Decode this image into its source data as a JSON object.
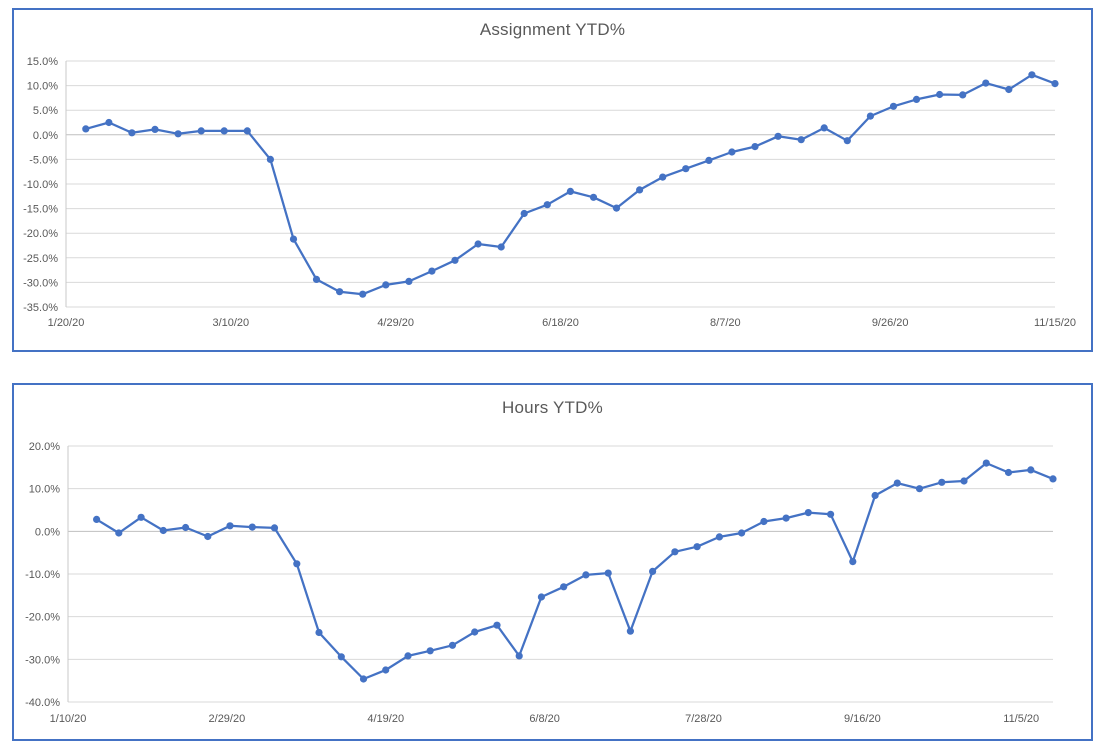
{
  "colors": {
    "line": "#4472C4",
    "marker": "#4472C4",
    "gridline": "#D9D9D9",
    "zero_line": "#BFBFBF",
    "axis_line": "#C9C9C9",
    "axis_text": "#595959",
    "title_text": "#595959",
    "chart_border": "#4472C4",
    "background": "#FFFFFF"
  },
  "chart_data": [
    {
      "type": "line",
      "title": "Assignment YTD%",
      "grid": true,
      "legend": "none",
      "marker": "circle",
      "x_axis": {
        "min": "1/20/20",
        "max": "11/15/20",
        "ticks": [
          "1/20/20",
          "3/10/20",
          "4/29/20",
          "6/18/20",
          "8/7/20",
          "9/26/20",
          "11/15/20"
        ]
      },
      "y_axis": {
        "min": -35,
        "max": 15,
        "tick_values": [
          15,
          10,
          5,
          0,
          -5,
          -10,
          -15,
          -20,
          -25,
          -30,
          -35
        ],
        "tick_labels": [
          "15.0%",
          "10.0%",
          "5.0%",
          "0.0%",
          "-5.0%",
          "-10.0%",
          "-15.0%",
          "-20.0%",
          "-25.0%",
          "-30.0%",
          "-35.0%"
        ]
      },
      "series": [
        {
          "name": "Assignment YTD%",
          "dates": [
            "1/26/20",
            "2/2/20",
            "2/9/20",
            "2/16/20",
            "2/23/20",
            "3/1/20",
            "3/8/20",
            "3/15/20",
            "3/22/20",
            "3/29/20",
            "4/5/20",
            "4/12/20",
            "4/19/20",
            "4/26/20",
            "5/3/20",
            "5/10/20",
            "5/17/20",
            "5/24/20",
            "5/31/20",
            "6/7/20",
            "6/14/20",
            "6/21/20",
            "6/28/20",
            "7/5/20",
            "7/12/20",
            "7/19/20",
            "7/26/20",
            "8/2/20",
            "8/9/20",
            "8/16/20",
            "8/23/20",
            "8/30/20",
            "9/6/20",
            "9/13/20",
            "9/20/20",
            "9/27/20",
            "10/4/20",
            "10/11/20",
            "10/18/20",
            "10/25/20",
            "11/1/20",
            "11/8/20",
            "11/15/20"
          ],
          "values": [
            1.2,
            2.5,
            0.4,
            1.1,
            0.2,
            0.8,
            0.8,
            0.8,
            -5.0,
            -21.2,
            -29.4,
            -31.9,
            -32.4,
            -30.5,
            -29.8,
            -27.7,
            -25.5,
            -22.2,
            -22.8,
            -16.0,
            -14.2,
            -11.5,
            -12.7,
            -14.9,
            -11.2,
            -8.6,
            -6.9,
            -5.2,
            -3.5,
            -2.4,
            -0.3,
            -1.0,
            1.4,
            -1.2,
            3.8,
            5.8,
            7.2,
            8.2,
            8.1,
            10.5,
            9.2,
            12.2,
            10.4
          ]
        }
      ]
    },
    {
      "type": "line",
      "title": "Hours YTD%",
      "grid": true,
      "legend": "none",
      "marker": "circle",
      "x_axis": {
        "min": "1/10/20",
        "max": "11/15/20",
        "ticks": [
          "1/10/20",
          "2/29/20",
          "4/19/20",
          "6/8/20",
          "7/28/20",
          "9/16/20",
          "11/5/20"
        ]
      },
      "y_axis": {
        "min": -40,
        "max": 20,
        "tick_values": [
          20,
          10,
          0,
          -10,
          -20,
          -30,
          -40
        ],
        "tick_labels": [
          "20.0%",
          "10.0%",
          "0.0%",
          "-10.0%",
          "-20.0%",
          "-30.0%",
          "-40.0%"
        ]
      },
      "series": [
        {
          "name": "Hours YTD%",
          "dates": [
            "1/19/20",
            "1/26/20",
            "2/2/20",
            "2/9/20",
            "2/16/20",
            "2/23/20",
            "3/1/20",
            "3/8/20",
            "3/15/20",
            "3/22/20",
            "3/29/20",
            "4/5/20",
            "4/12/20",
            "4/19/20",
            "4/26/20",
            "5/3/20",
            "5/10/20",
            "5/17/20",
            "5/24/20",
            "5/31/20",
            "6/7/20",
            "6/14/20",
            "6/21/20",
            "6/28/20",
            "7/5/20",
            "7/12/20",
            "7/19/20",
            "7/26/20",
            "8/2/20",
            "8/9/20",
            "8/16/20",
            "8/23/20",
            "8/30/20",
            "9/6/20",
            "9/13/20",
            "9/20/20",
            "9/27/20",
            "10/4/20",
            "10/11/20",
            "10/18/20",
            "10/25/20",
            "11/1/20",
            "11/8/20",
            "11/15/20"
          ],
          "values": [
            2.8,
            -0.4,
            3.3,
            0.2,
            0.9,
            -1.2,
            1.3,
            1.0,
            0.8,
            -7.6,
            -23.7,
            -29.4,
            -34.6,
            -32.5,
            -29.2,
            -28.0,
            -26.7,
            -23.6,
            -22.0,
            -29.2,
            -15.4,
            -13.0,
            -10.2,
            -9.8,
            -23.4,
            -9.4,
            -4.8,
            -3.6,
            -1.3,
            -0.4,
            2.3,
            3.1,
            4.4,
            4.0,
            -7.1,
            8.4,
            11.3,
            10.0,
            11.5,
            11.8,
            16.0,
            13.8,
            14.4,
            12.3
          ]
        }
      ]
    }
  ]
}
